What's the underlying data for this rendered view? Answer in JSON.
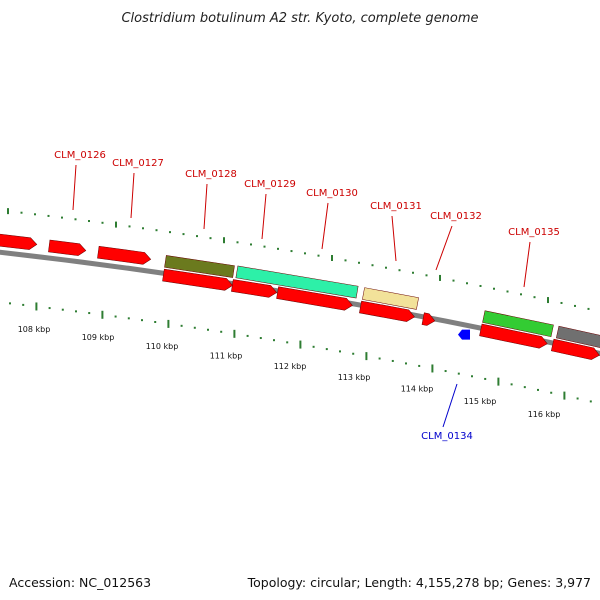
{
  "title": "Clostridium botulinum A2 str. Kyoto, complete genome",
  "footer": {
    "accession": "Accession: NC_012563",
    "topology": "Topology: circular; Length: 4,155,278 bp; Genes: 3,977"
  },
  "colors": {
    "forward_label": "#cc0000",
    "reverse_label": "#0000cc",
    "backbone": "#808080",
    "tick": "#2e7d32",
    "arrow_red": "#ff0000",
    "arrow_blue": "#0000ff"
  },
  "gene_labels": [
    {
      "id": "CLM_0126",
      "text": "CLM_0126",
      "strand": "forward"
    },
    {
      "id": "CLM_0127",
      "text": "CLM_0127",
      "strand": "forward"
    },
    {
      "id": "CLM_0128",
      "text": "CLM_0128",
      "strand": "forward"
    },
    {
      "id": "CLM_0129",
      "text": "CLM_0129",
      "strand": "forward"
    },
    {
      "id": "CLM_0130",
      "text": "CLM_0130",
      "strand": "forward"
    },
    {
      "id": "CLM_0131",
      "text": "CLM_0131",
      "strand": "forward"
    },
    {
      "id": "CLM_0132",
      "text": "CLM_0132",
      "strand": "forward"
    },
    {
      "id": "CLM_0135",
      "text": "CLM_0135",
      "strand": "forward"
    },
    {
      "id": "CLM_0134",
      "text": "CLM_0134",
      "strand": "reverse"
    }
  ],
  "scale_labels": [
    "108 kbp",
    "109 kbp",
    "110 kbp",
    "111 kbp",
    "112 kbp",
    "113 kbp",
    "114 kbp",
    "115 kbp",
    "116 kbp"
  ],
  "feature_colors": {
    "olive": "#6b7a1e",
    "aquamarine": "#2df0a8",
    "khaki": "#f2e29a",
    "green": "#33cc33",
    "gray": "#707070"
  }
}
